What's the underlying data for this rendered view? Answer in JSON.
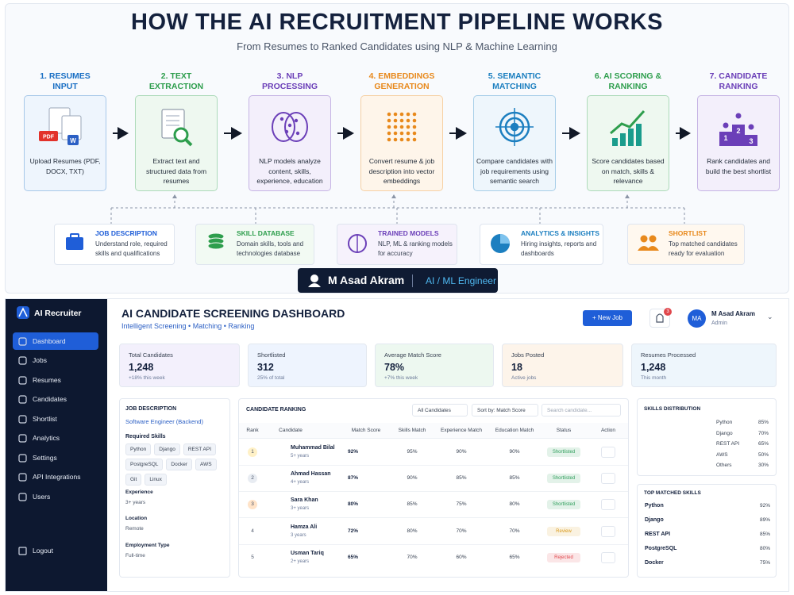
{
  "pipeline": {
    "title": "HOW THE AI RECRUITMENT PIPELINE WORKS",
    "subtitle": "From Resumes to Ranked Candidates using NLP & Machine Learning",
    "steps": [
      {
        "title": "1. RESUMES INPUT",
        "text": "Upload Resumes (PDF, DOCX, TXT)",
        "badges": [
          "PDF",
          "W"
        ]
      },
      {
        "title": "2. TEXT EXTRACTION",
        "text": "Extract text and structured data from resumes"
      },
      {
        "title": "3. NLP PROCESSING",
        "text": "NLP models analyze content, skills, experience, education"
      },
      {
        "title": "4. EMBEDDINGS GENERATION",
        "text": "Convert resume & job description into vector embeddings"
      },
      {
        "title": "5. SEMANTIC MATCHING",
        "text": "Compare candidates with job requirements using semantic search"
      },
      {
        "title": "6. AI SCORING & RANKING",
        "text": "Score candidates based on match, skills & relevance"
      },
      {
        "title": "7. CANDIDATE RANKING",
        "text": "Rank candidates and build the best shortlist",
        "badges": [
          "2",
          "1",
          "3"
        ]
      }
    ],
    "resources": [
      {
        "title": "JOB DESCRIPTION",
        "text": "Understand role, required skills and qualifications"
      },
      {
        "title": "SKILL DATABASE",
        "text": "Domain skills, tools and technologies database"
      },
      {
        "title": "TRAINED MODELS",
        "text": "NLP, ML & ranking models for accuracy"
      },
      {
        "title": "ANALYTICS & INSIGHTS",
        "text": "Hiring insights, reports and dashboards"
      },
      {
        "title": "SHORTLIST",
        "text": "Top matched candidates ready for evaluation"
      }
    ],
    "author": {
      "name": "M Asad Akram",
      "role": "AI / ML Engineer"
    }
  },
  "dashboard": {
    "sidebar": {
      "brand": "AI Recruiter",
      "menu": [
        "Dashboard",
        "Jobs",
        "Resumes",
        "Candidates",
        "Shortlist",
        "Analytics",
        "Settings",
        "API Integrations",
        "Users"
      ],
      "logout": "Logout"
    },
    "header": {
      "title": "AI CANDIDATE SCREENING DASHBOARD",
      "subtitle": "Intelligent Screening • Matching • Ranking",
      "button": "+ New Job",
      "notifications": "3",
      "user": {
        "initials": "MA",
        "name": "M Asad Akram",
        "role": "Admin"
      }
    },
    "stats": [
      {
        "label": "Total Candidates",
        "value": "1,248",
        "note": "+18% this week"
      },
      {
        "label": "Shortlisted",
        "value": "312",
        "note": "25% of total"
      },
      {
        "label": "Average Match Score",
        "value": "78%",
        "note": "+7% this week"
      },
      {
        "label": "Jobs Posted",
        "value": "18",
        "note": "Active jobs"
      },
      {
        "label": "Resumes Processed",
        "value": "1,248",
        "note": "This month"
      }
    ],
    "job": {
      "heading": "JOB DESCRIPTION",
      "role": "Software Engineer (Backend)",
      "skills_label": "Required Skills",
      "skills": [
        "Python",
        "Django",
        "REST API",
        "PostgreSQL",
        "Docker",
        "AWS",
        "Git",
        "Linux"
      ],
      "details": [
        {
          "label": "Experience",
          "value": "3+ years"
        },
        {
          "label": "Location",
          "value": "Remote"
        },
        {
          "label": "Employment Type",
          "value": "Full-time"
        }
      ]
    },
    "ranking": {
      "heading": "CANDIDATE RANKING",
      "filter": "All Candidates",
      "sort": "Sort by: Match Score",
      "search": "Search candidate...",
      "columns": [
        "Rank",
        "Candidate",
        "Match Score",
        "Skills Match",
        "Experience Match",
        "Education Match",
        "Status",
        "Action"
      ],
      "rows": [
        {
          "rank": 1,
          "name": "Muhammad Bilal",
          "experience": "5+ years",
          "match": {
            "value": 92,
            "label": "92%"
          },
          "skills": "95%",
          "exp_match": "90%",
          "edu_match": "90%",
          "status": "Shortlisted",
          "status_color": "#2e9e5b"
        },
        {
          "rank": 2,
          "name": "Ahmad Hassan",
          "experience": "4+ years",
          "match": {
            "value": 87,
            "label": "87%"
          },
          "skills": "90%",
          "exp_match": "85%",
          "edu_match": "85%",
          "status": "Shortlisted",
          "status_color": "#2e9e5b"
        },
        {
          "rank": 3,
          "name": "Sara Khan",
          "experience": "3+ years",
          "match": {
            "value": 80,
            "label": "80%"
          },
          "skills": "85%",
          "exp_match": "75%",
          "edu_match": "80%",
          "status": "Shortlisted",
          "status_color": "#2e9e5b"
        },
        {
          "rank": 4,
          "name": "Hamza Ali",
          "experience": "3 years",
          "match": {
            "value": 72,
            "label": "72%"
          },
          "skills": "80%",
          "exp_match": "70%",
          "edu_match": "70%",
          "status": "Review",
          "status_color": "#d99a1b"
        },
        {
          "rank": 5,
          "name": "Usman Tariq",
          "experience": "2+ years",
          "match": {
            "value": 65,
            "label": "65%"
          },
          "skills": "70%",
          "exp_match": "60%",
          "edu_match": "65%",
          "status": "Rejected",
          "status_color": "#e0474c"
        }
      ]
    },
    "distribution": {
      "heading": "SKILLS DISTRIBUTION",
      "items": [
        {
          "name": "Python",
          "value": 85,
          "label": "85%",
          "color": "#5b7ee5"
        },
        {
          "name": "Django",
          "value": 70,
          "label": "70%",
          "color": "#4fc3e0"
        },
        {
          "name": "REST API",
          "value": 65,
          "label": "65%",
          "color": "#3cba6e"
        },
        {
          "name": "AWS",
          "value": 50,
          "label": "50%",
          "color": "#f4a340"
        },
        {
          "name": "Others",
          "value": 30,
          "label": "30%",
          "color": "#9b7fe0"
        }
      ]
    },
    "top_skills": {
      "heading": "TOP MATCHED SKILLS",
      "items": [
        {
          "name": "Python",
          "value": 92,
          "label": "92%"
        },
        {
          "name": "Django",
          "value": 89,
          "label": "89%"
        },
        {
          "name": "REST API",
          "value": 85,
          "label": "85%"
        },
        {
          "name": "PostgreSQL",
          "value": 80,
          "label": "80%"
        },
        {
          "name": "Docker",
          "value": 75,
          "label": "75%"
        }
      ]
    }
  }
}
